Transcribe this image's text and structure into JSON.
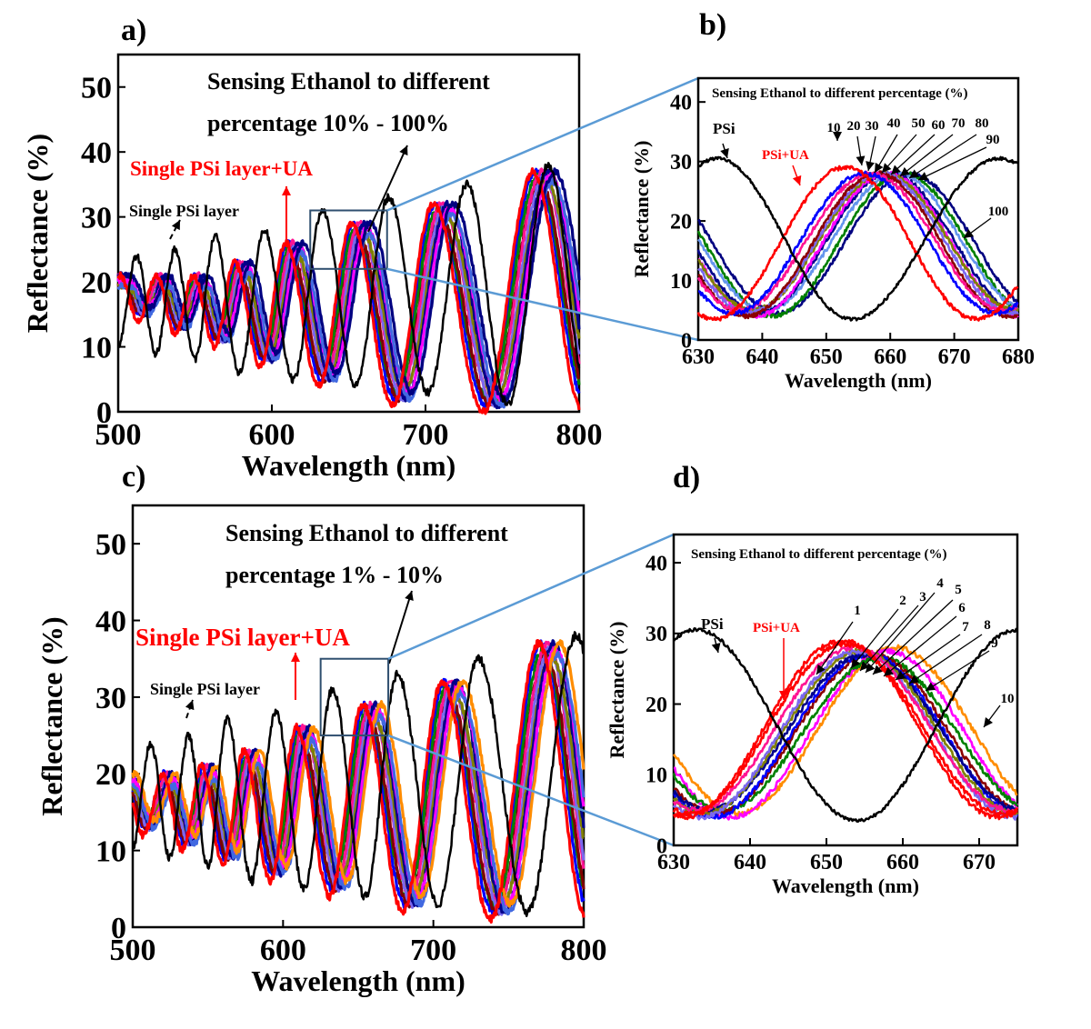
{
  "figure": {
    "panels": [
      {
        "letter": "a)",
        "annotation_lines": [
          "Sensing Ethanol to different",
          "percentage 10% - 100%"
        ],
        "label_ua": "Single PSi layer+UA",
        "label_psi": "Single PSi layer"
      },
      {
        "letter": "b)",
        "inset_title": "Sensing Ethanol to different percentage (%)",
        "label_psi": "PSi",
        "label_ua": "PSi+UA",
        "curve_labels": [
          "10",
          "20",
          "30",
          "40",
          "50",
          "60",
          "70",
          "80",
          "90",
          "100"
        ]
      },
      {
        "letter": "c)",
        "annotation_lines": [
          "Sensing Ethanol to different",
          "percentage 1% - 10%"
        ],
        "label_ua": "Single PSi layer+UA",
        "label_psi": "Single PSi layer"
      },
      {
        "letter": "d)",
        "inset_title": "Sensing Ethanol to different percentage (%)",
        "label_psi": "PSi",
        "label_ua": "PSi+UA",
        "curve_labels": [
          "1",
          "2",
          "3",
          "4",
          "5",
          "6",
          "7",
          "8",
          "9",
          "10"
        ]
      }
    ]
  },
  "chart_data": [
    {
      "panel": "a)",
      "type": "line",
      "xlabel": "Wavelength (nm)",
      "ylabel": "Reflectance (%)",
      "xlim": [
        500,
        800
      ],
      "ylim": [
        0,
        55
      ],
      "xticks": [
        "500",
        "600",
        "700",
        "800"
      ],
      "yticks": [
        "0",
        "10",
        "20",
        "30",
        "40",
        "50"
      ],
      "series": [
        {
          "name": "Single PSi layer",
          "color": "#000000",
          "fringe_peaks_nm": [
            512,
            537,
            563,
            595,
            633,
            676,
            727,
            780
          ],
          "peak_reflectance": [
            24,
            25,
            27,
            28,
            31,
            33,
            35,
            38
          ],
          "trough_reflectance": [
            10,
            9,
            8,
            6,
            5,
            4,
            3,
            1
          ]
        },
        {
          "name": "Single PSi layer+UA",
          "color": "#ff0000",
          "fringe_peaks_nm": [
            525,
            549,
            576,
            609,
            652,
            705,
            770
          ],
          "peak_reflectance": [
            21,
            21,
            23,
            26,
            29,
            32,
            37
          ],
          "trough_reflectance": [
            14,
            12,
            10,
            7,
            4,
            1,
            0
          ]
        },
        {
          "name": "10",
          "color": "#0000ff"
        },
        {
          "name": "20",
          "color": "#008000"
        },
        {
          "name": "30",
          "color": "#7f0000"
        },
        {
          "name": "40",
          "color": "#ff1493"
        },
        {
          "name": "50",
          "color": "#7b68ee"
        },
        {
          "name": "60",
          "color": "#808000"
        },
        {
          "name": "70",
          "color": "#00008b"
        },
        {
          "name": "80",
          "color": "#ff00ff"
        },
        {
          "name": "90",
          "color": "#4169e1"
        },
        {
          "name": "100",
          "color": "#000080"
        }
      ],
      "zoom_box_nm": [
        625,
        675
      ],
      "zoom_box_reflectance": [
        22,
        31
      ],
      "grid": false
    },
    {
      "panel": "b)",
      "type": "line",
      "xlabel": "Wavelength (nm)",
      "ylabel": "Reflectance (%)",
      "xlim": [
        630,
        680
      ],
      "ylim": [
        0,
        44
      ],
      "xticks": [
        "630",
        "640",
        "650",
        "660",
        "670",
        "680"
      ],
      "yticks": [
        "0",
        "10",
        "20",
        "30",
        "40"
      ],
      "series": [
        {
          "name": "PSi",
          "color": "#000000",
          "peaks_nm": [
            633,
            677
          ],
          "trough_nm": 654,
          "peak_reflectance": 30.5,
          "trough_reflectance": 3.5
        },
        {
          "name": "PSi+UA",
          "color": "#ff0000",
          "peak_nm": 653,
          "peak_reflectance": 29,
          "trough_reflectance": 3.5
        },
        {
          "name": "10",
          "color": "#0000ff",
          "peak_nm": 656,
          "peak_reflectance": 28
        },
        {
          "name": "20",
          "color": "#ff1493",
          "peak_nm": 657,
          "peak_reflectance": 28
        },
        {
          "name": "30",
          "color": "#8b0000",
          "peak_nm": 658,
          "peak_reflectance": 28
        },
        {
          "name": "40",
          "color": "#7b68ee",
          "peak_nm": 658.5,
          "peak_reflectance": 28
        },
        {
          "name": "50",
          "color": "#808000",
          "peak_nm": 659,
          "peak_reflectance": 28
        },
        {
          "name": "60",
          "color": "#ff00ff",
          "peak_nm": 659.5,
          "peak_reflectance": 28
        },
        {
          "name": "70",
          "color": "#00008b",
          "peak_nm": 660,
          "peak_reflectance": 28
        },
        {
          "name": "80",
          "color": "#6495ed",
          "peak_nm": 661,
          "peak_reflectance": 28
        },
        {
          "name": "90",
          "color": "#008000",
          "peak_nm": 662,
          "peak_reflectance": 28
        },
        {
          "name": "100",
          "color": "#000080",
          "peak_nm": 663,
          "peak_reflectance": 28
        }
      ],
      "grid": false
    },
    {
      "panel": "c)",
      "type": "line",
      "xlabel": "Wavelength (nm)",
      "ylabel": "Reflectance (%)",
      "xlim": [
        500,
        800
      ],
      "ylim": [
        0,
        55
      ],
      "xticks": [
        "500",
        "600",
        "700",
        "800"
      ],
      "yticks": [
        "0",
        "10",
        "20",
        "30",
        "40",
        "50"
      ],
      "series": [
        {
          "name": "Single PSi layer",
          "color": "#000000",
          "fringe_peaks_nm": [
            512,
            537,
            563,
            595,
            633,
            676,
            730,
            795
          ],
          "peak_reflectance": [
            24,
            25,
            27,
            28,
            31,
            33,
            35,
            38
          ],
          "trough_reflectance": [
            10,
            9,
            8,
            6,
            5,
            4,
            3,
            2
          ]
        },
        {
          "name": "Single PSi layer+UA",
          "color": "#ff0000",
          "fringe_peaks_nm": [
            520,
            546,
            574,
            609,
            653,
            706,
            770
          ],
          "peak_reflectance": [
            20,
            21,
            23,
            26,
            29,
            32,
            37
          ],
          "trough_reflectance": [
            12,
            10,
            8,
            6,
            4,
            2,
            1
          ]
        },
        {
          "name": "1",
          "color": "#0000ff"
        },
        {
          "name": "2",
          "color": "#008000"
        },
        {
          "name": "3",
          "color": "#7f0000"
        },
        {
          "name": "4",
          "color": "#ff1493"
        },
        {
          "name": "5",
          "color": "#7b68ee"
        },
        {
          "name": "6",
          "color": "#808000"
        },
        {
          "name": "7",
          "color": "#00008b"
        },
        {
          "name": "8",
          "color": "#ff00ff"
        },
        {
          "name": "9",
          "color": "#4169e1"
        },
        {
          "name": "10",
          "color": "#ff8c00"
        }
      ],
      "zoom_box_nm": [
        625,
        670
      ],
      "zoom_box_reflectance": [
        25,
        35
      ],
      "grid": false
    },
    {
      "panel": "d)",
      "type": "line",
      "xlabel": "Wavelength (nm)",
      "ylabel": "Reflectance (%)",
      "xlim": [
        630,
        675
      ],
      "ylim": [
        0,
        44
      ],
      "xticks": [
        "630",
        "640",
        "650",
        "660",
        "670"
      ],
      "yticks": [
        "0",
        "10",
        "20",
        "30",
        "40"
      ],
      "series": [
        {
          "name": "PSi",
          "color": "#000000",
          "peaks_nm": [
            633,
            675
          ],
          "trough_nm": 654,
          "peak_reflectance": 30.5,
          "trough_reflectance": 3.5
        },
        {
          "name": "PSi+UA",
          "color": "#ff0000",
          "peak_nm": 652,
          "peak_reflectance": 29,
          "trough_reflectance": 4
        },
        {
          "name": "1",
          "color": "#ff0000",
          "peak_nm": 652.5,
          "peak_reflectance": 28.5
        },
        {
          "name": "2",
          "color": "#ff1493",
          "peak_nm": 653.5,
          "peak_reflectance": 28
        },
        {
          "name": "3",
          "color": "#7b68ee",
          "peak_nm": 654,
          "peak_reflectance": 27.5
        },
        {
          "name": "4",
          "color": "#808000",
          "peak_nm": 654.5,
          "peak_reflectance": 27.5
        },
        {
          "name": "5",
          "color": "#00008b",
          "peak_nm": 655,
          "peak_reflectance": 27
        },
        {
          "name": "6",
          "color": "#0000ff",
          "peak_nm": 655.5,
          "peak_reflectance": 27
        },
        {
          "name": "7",
          "color": "#8b0000",
          "peak_nm": 656,
          "peak_reflectance": 27
        },
        {
          "name": "8",
          "color": "#008000",
          "peak_nm": 657,
          "peak_reflectance": 26.5
        },
        {
          "name": "9",
          "color": "#ff00ff",
          "peak_nm": 658,
          "peak_reflectance": 27.5
        },
        {
          "name": "10",
          "color": "#ff8c00",
          "peak_nm": 659,
          "peak_reflectance": 28
        }
      ],
      "grid": false
    }
  ]
}
